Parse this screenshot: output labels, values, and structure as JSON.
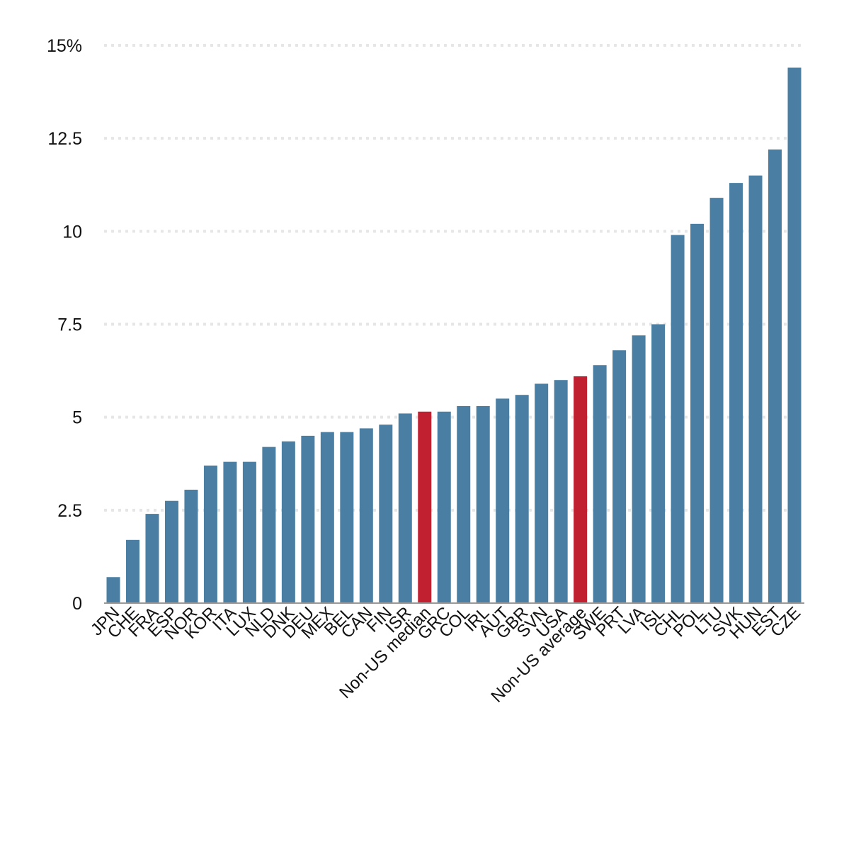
{
  "chart_data": {
    "type": "bar",
    "title": "",
    "xlabel": "",
    "ylabel": "",
    "ylim": [
      0,
      15
    ],
    "yticks": [
      {
        "value": 0,
        "label": "0"
      },
      {
        "value": 2.5,
        "label": "2.5"
      },
      {
        "value": 5,
        "label": "5"
      },
      {
        "value": 7.5,
        "label": "7.5"
      },
      {
        "value": 10,
        "label": "10"
      },
      {
        "value": 12.5,
        "label": "12.5"
      },
      {
        "value": 15,
        "label": "15%"
      }
    ],
    "grid": true,
    "colors": {
      "default": "#4a7fa3",
      "highlight": "#c0202f",
      "grid": "#e6e6e6",
      "axis": "#999999"
    },
    "categories": [
      "JPN",
      "CHE",
      "FRA",
      "ESP",
      "NOR",
      "KOR",
      "ITA",
      "LUX",
      "NLD",
      "DNK",
      "DEU",
      "MEX",
      "BEL",
      "CAN",
      "FIN",
      "ISR",
      "Non-US median",
      "GRC",
      "COL",
      "IRL",
      "AUT",
      "GBR",
      "SVN",
      "USA",
      "Non-US average",
      "SWE",
      "PRT",
      "LVA",
      "ISL",
      "CHL",
      "POL",
      "LTU",
      "SVK",
      "HUN",
      "EST",
      "CZE"
    ],
    "values": [
      0.7,
      1.7,
      2.4,
      2.75,
      3.05,
      3.7,
      3.8,
      3.8,
      4.2,
      4.35,
      4.5,
      4.6,
      4.6,
      4.7,
      4.8,
      5.1,
      5.15,
      5.15,
      5.3,
      5.3,
      5.5,
      5.6,
      5.9,
      6.0,
      6.1,
      6.4,
      6.8,
      7.2,
      7.5,
      9.9,
      10.2,
      10.9,
      11.3,
      11.5,
      12.2,
      14.4
    ],
    "highlighted": [
      "Non-US median",
      "Non-US average"
    ]
  }
}
